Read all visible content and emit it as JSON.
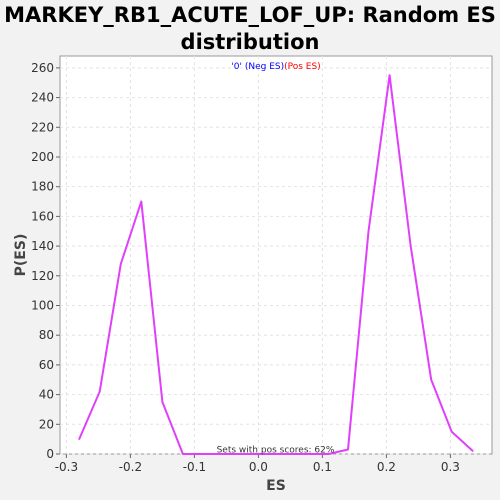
{
  "chart_data": {
    "type": "line",
    "title_line1": "MARKEY_RB1_ACUTE_LOF_UP: Random ES",
    "title_line2": "distribution",
    "xlabel": "ES",
    "ylabel": "P(ES)",
    "xlim": [
      -0.31,
      0.365
    ],
    "ylim": [
      0,
      268
    ],
    "xticks": [
      -0.3,
      -0.2,
      -0.1,
      0.0,
      0.1,
      0.2,
      0.3
    ],
    "xtick_labels": [
      "-0.3",
      "-0.2",
      "-0.1",
      "0.0",
      "0.1",
      "0.2",
      "0.3"
    ],
    "yticks": [
      0,
      20,
      40,
      60,
      80,
      100,
      120,
      140,
      160,
      180,
      200,
      220,
      240,
      260
    ],
    "ytick_labels": [
      "0",
      "20",
      "40",
      "60",
      "80",
      "100",
      "120",
      "140",
      "160",
      "180",
      "200",
      "220",
      "240",
      "260"
    ],
    "grid": true,
    "legend": {
      "prefix": "'0' ",
      "neg_label": "(Neg ES)",
      "pos_label": "(Pos ES)",
      "neg_color": "#0000ff",
      "pos_color": "#ff0000",
      "prefix_color": "#0000ff",
      "placement": "top-center"
    },
    "annotation": "Sets with pos scores: 62%",
    "series": [
      {
        "color": "#e040fb",
        "x": [
          -0.28,
          -0.248,
          -0.215,
          -0.183,
          -0.15,
          -0.118,
          -0.085,
          -0.053,
          -0.02,
          0.013,
          0.045,
          0.078,
          0.11,
          0.14,
          0.172,
          0.205,
          0.238,
          0.27,
          0.302,
          0.335
        ],
        "y": [
          10,
          42,
          128,
          170,
          35,
          0,
          0,
          0,
          0,
          0,
          0,
          0,
          0,
          3,
          150,
          255,
          140,
          50,
          15,
          2
        ]
      }
    ]
  }
}
